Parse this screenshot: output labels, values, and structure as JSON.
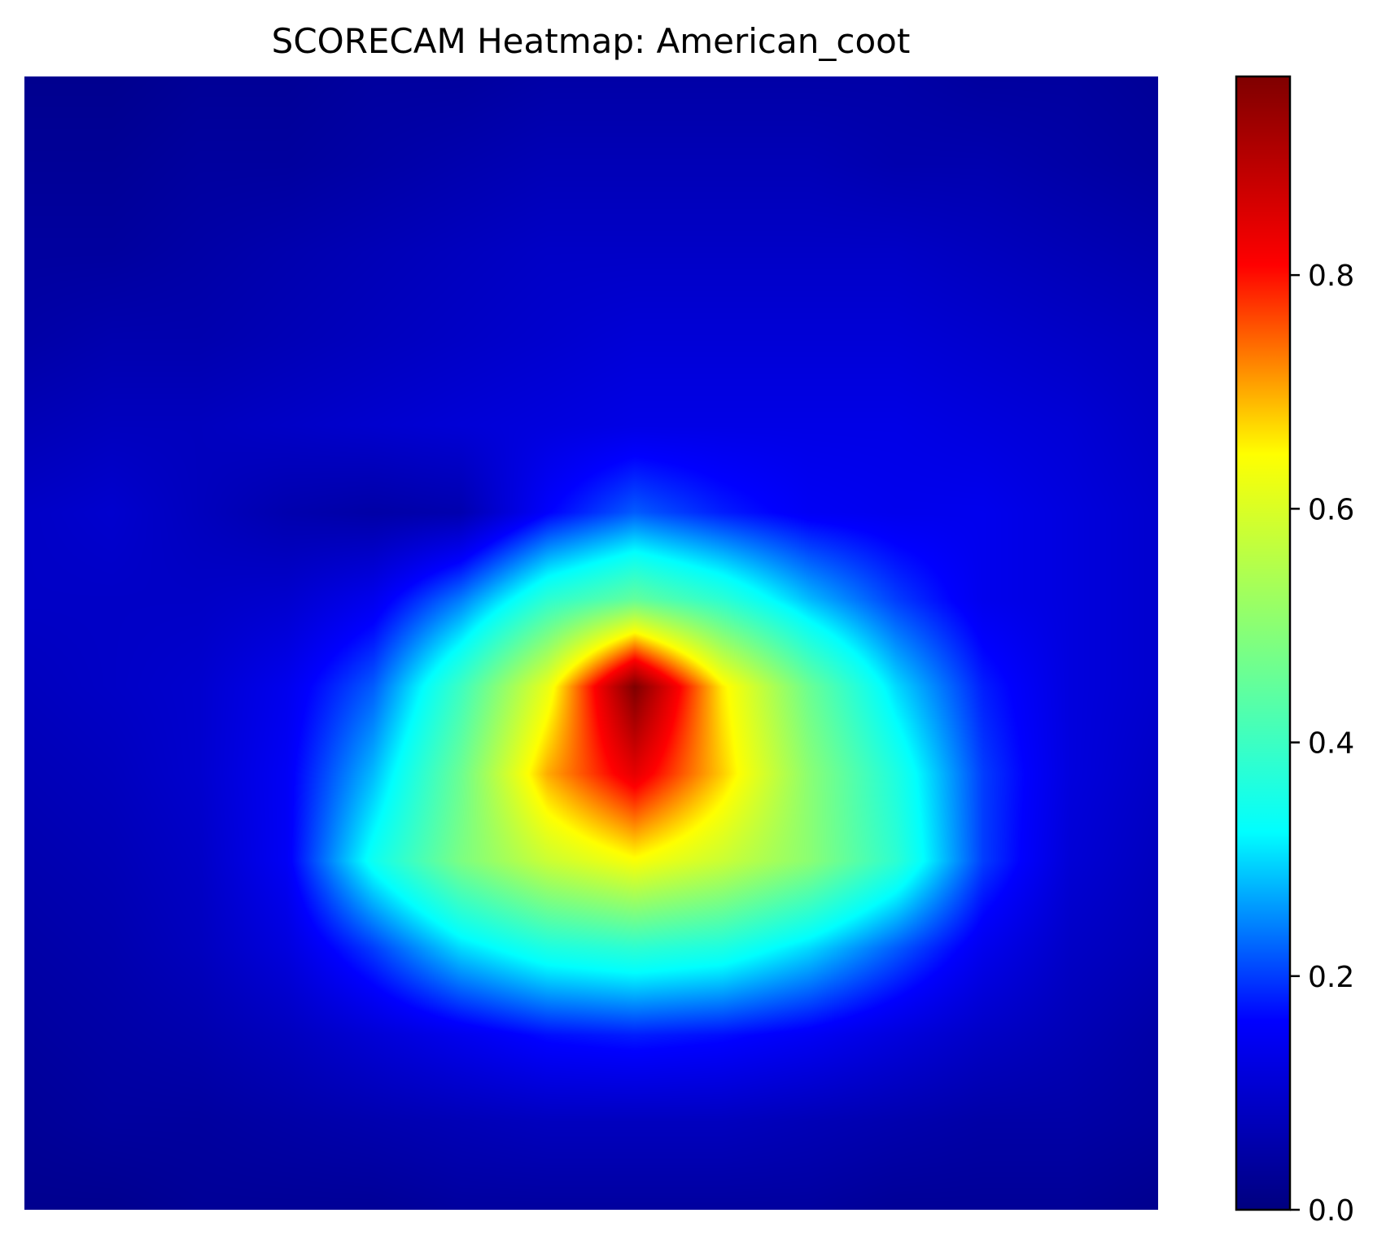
{
  "chart_data": {
    "type": "heatmap",
    "title": "SCORECAM Heatmap: American_coot",
    "xlabel": "",
    "ylabel": "",
    "axes_visible": false,
    "grid": false,
    "colormap": "jet",
    "colormap_stops": [
      "#00007f",
      "#0000ff",
      "#00ffff",
      "#7fff7f",
      "#ffff00",
      "#ff0000",
      "#7f0000"
    ],
    "value_range": [
      0,
      0.97
    ],
    "colorbar": {
      "location": "right",
      "ticks": [
        0.0,
        0.2,
        0.4,
        0.6,
        0.8
      ],
      "tick_labels": [
        "0.0",
        "0.2",
        "0.4",
        "0.6",
        "0.8"
      ]
    },
    "grid_size": [
      14,
      14
    ],
    "values": [
      [
        0.02,
        0.02,
        0.03,
        0.03,
        0.04,
        0.04,
        0.05,
        0.05,
        0.05,
        0.05,
        0.05,
        0.04,
        0.04,
        0.03
      ],
      [
        0.03,
        0.03,
        0.04,
        0.04,
        0.05,
        0.06,
        0.07,
        0.07,
        0.07,
        0.07,
        0.06,
        0.06,
        0.05,
        0.04
      ],
      [
        0.04,
        0.04,
        0.05,
        0.06,
        0.07,
        0.08,
        0.09,
        0.09,
        0.09,
        0.09,
        0.09,
        0.08,
        0.07,
        0.06
      ],
      [
        0.05,
        0.06,
        0.06,
        0.07,
        0.08,
        0.09,
        0.1,
        0.11,
        0.11,
        0.11,
        0.11,
        0.1,
        0.09,
        0.08
      ],
      [
        0.07,
        0.08,
        0.08,
        0.09,
        0.1,
        0.11,
        0.12,
        0.13,
        0.13,
        0.13,
        0.13,
        0.12,
        0.11,
        0.09
      ],
      [
        0.09,
        0.1,
        0.08,
        0.06,
        0.05,
        0.06,
        0.16,
        0.22,
        0.18,
        0.15,
        0.14,
        0.14,
        0.12,
        0.1
      ],
      [
        0.09,
        0.09,
        0.09,
        0.1,
        0.14,
        0.24,
        0.38,
        0.45,
        0.38,
        0.28,
        0.2,
        0.14,
        0.12,
        0.1
      ],
      [
        0.08,
        0.09,
        0.1,
        0.14,
        0.22,
        0.4,
        0.62,
        0.97,
        0.66,
        0.46,
        0.3,
        0.18,
        0.12,
        0.1
      ],
      [
        0.07,
        0.08,
        0.1,
        0.15,
        0.28,
        0.46,
        0.7,
        0.84,
        0.68,
        0.5,
        0.36,
        0.2,
        0.12,
        0.09
      ],
      [
        0.06,
        0.07,
        0.09,
        0.15,
        0.34,
        0.48,
        0.58,
        0.64,
        0.58,
        0.5,
        0.38,
        0.2,
        0.11,
        0.08
      ],
      [
        0.05,
        0.06,
        0.08,
        0.12,
        0.2,
        0.3,
        0.36,
        0.38,
        0.36,
        0.3,
        0.22,
        0.14,
        0.09,
        0.07
      ],
      [
        0.04,
        0.05,
        0.06,
        0.08,
        0.11,
        0.14,
        0.17,
        0.18,
        0.17,
        0.15,
        0.12,
        0.09,
        0.07,
        0.05
      ],
      [
        0.03,
        0.04,
        0.04,
        0.05,
        0.06,
        0.07,
        0.08,
        0.08,
        0.08,
        0.07,
        0.06,
        0.05,
        0.05,
        0.04
      ],
      [
        0.02,
        0.02,
        0.03,
        0.03,
        0.03,
        0.04,
        0.04,
        0.04,
        0.04,
        0.04,
        0.03,
        0.03,
        0.03,
        0.02
      ]
    ]
  }
}
